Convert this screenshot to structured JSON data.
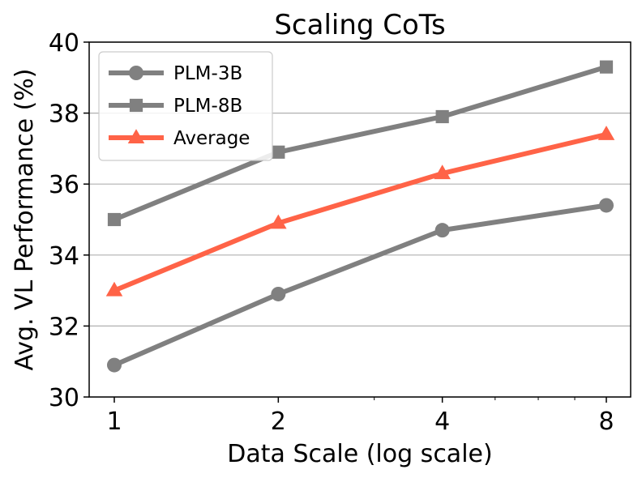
{
  "chart_data": {
    "type": "line",
    "title": "Scaling CoTs",
    "xlabel": "Data Scale (log scale)",
    "ylabel": "Avg. VL Performance (%)",
    "xscale": "log",
    "x": [
      1,
      2,
      4,
      8
    ],
    "xticklabels": [
      "1",
      "2",
      "4",
      "8"
    ],
    "ylim": [
      30,
      40
    ],
    "yticks": [
      30,
      32,
      34,
      36,
      38,
      40
    ],
    "yticklabels": [
      "30",
      "32",
      "34",
      "36",
      "38",
      "40"
    ],
    "grid": "y",
    "legend_position": "upper-left",
    "series": [
      {
        "name": "PLM-3B",
        "values": [
          30.9,
          32.9,
          34.7,
          35.4
        ],
        "color": "#808080",
        "marker": "circle"
      },
      {
        "name": "PLM-8B",
        "values": [
          35.0,
          36.9,
          37.9,
          39.3
        ],
        "color": "#808080",
        "marker": "square"
      },
      {
        "name": "Average",
        "values": [
          33.0,
          34.9,
          36.3,
          37.4
        ],
        "color": "#ff6347",
        "marker": "triangle"
      }
    ]
  }
}
